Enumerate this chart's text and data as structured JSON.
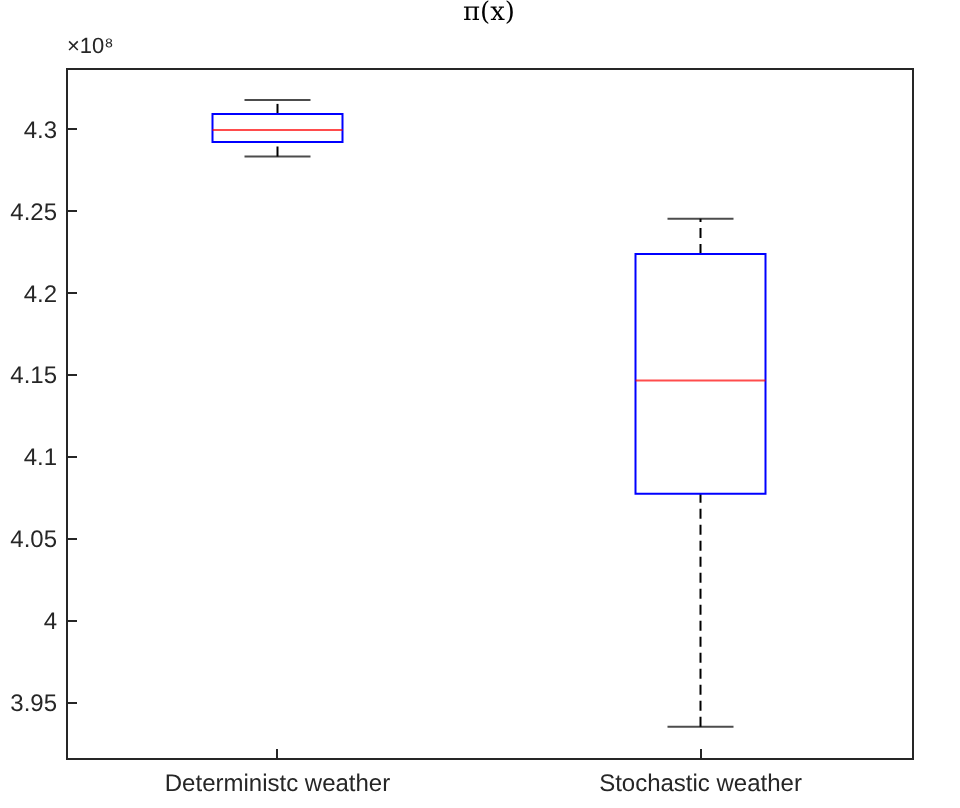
{
  "chart_data": {
    "type": "box",
    "title": "π(x)",
    "categories": [
      "Deterministc weather",
      "Stochastic weather"
    ],
    "series": [
      {
        "color": "#0000ff",
        "boxes": [
          {
            "low": 4.283,
            "q1": 4.2918,
            "median": 4.2992,
            "q3": 4.309,
            "high": 4.3175
          },
          {
            "low": 3.935,
            "q1": 4.0772,
            "median": 4.1463,
            "q3": 4.2235,
            "high": 4.245
          }
        ]
      }
    ],
    "ylim": [
      3.916,
      4.337
    ],
    "yticks": [
      3.95,
      4,
      4.05,
      4.1,
      4.15,
      4.2,
      4.25,
      4.3
    ],
    "annotations": [
      "×10⁸"
    ],
    "grid": false
  }
}
